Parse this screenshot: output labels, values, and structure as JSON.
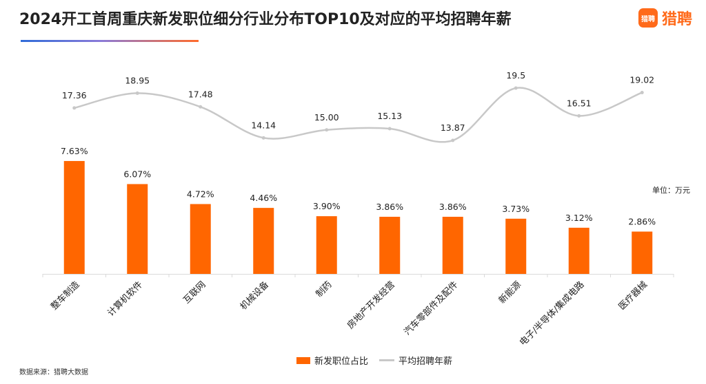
{
  "title": "2024开工首周重庆新发职位细分行业分布TOP10及对应的平均招聘年薪",
  "brand": {
    "icon_text": "猎聘",
    "name": "猎聘"
  },
  "unit_label": "单位：万元",
  "source": "数据来源：猎聘大数据",
  "colors": {
    "bar": "#ff6600",
    "line": "#c8c8c8"
  },
  "chart_data": {
    "type": "bar",
    "categories": [
      "整车制造",
      "计算机软件",
      "互联网",
      "机械设备",
      "制药",
      "房地产开发经营",
      "汽车零部件及配件",
      "新能源",
      "电子/半导体/集成电路",
      "医疗器械"
    ],
    "series": [
      {
        "name": "新发职位占比",
        "type": "bar",
        "values": [
          7.63,
          6.07,
          4.72,
          4.46,
          3.9,
          3.86,
          3.86,
          3.73,
          3.12,
          2.86
        ],
        "labels": [
          "7.63%",
          "6.07%",
          "4.72%",
          "4.46%",
          "3.90%",
          "3.86%",
          "3.86%",
          "3.73%",
          "3.12%",
          "2.86%"
        ]
      },
      {
        "name": "平均招聘年薪",
        "type": "line",
        "values": [
          17.36,
          18.95,
          17.48,
          14.14,
          15.0,
          15.13,
          13.87,
          19.5,
          16.51,
          19.02
        ],
        "labels": [
          "17.36",
          "18.95",
          "17.48",
          "14.14",
          "15.00",
          "15.13",
          "13.87",
          "19.5",
          "16.51",
          "19.02"
        ]
      }
    ],
    "legend": [
      "新发职位占比",
      "平均招聘年薪"
    ],
    "legend_position": "bottom",
    "grid": false
  }
}
